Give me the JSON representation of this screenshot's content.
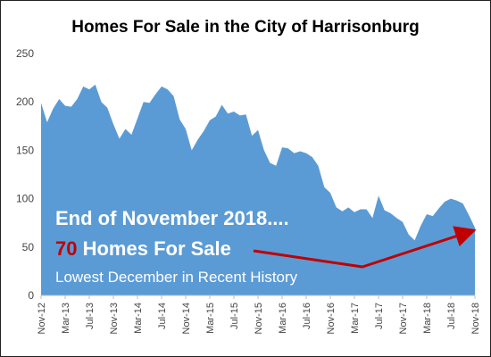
{
  "chart_data": {
    "type": "area",
    "title": "Homes For Sale in the City of Harrisonburg",
    "ylim": [
      0,
      250
    ],
    "yticks": [
      0,
      50,
      100,
      150,
      200,
      250
    ],
    "grid": false,
    "fill_color": "#5b9bd5",
    "x_tick_labels": [
      "Nov-12",
      "Mar-13",
      "Jul-13",
      "Nov-13",
      "Mar-14",
      "Jul-14",
      "Nov-14",
      "Mar-15",
      "Jul-15",
      "Nov-15",
      "Mar-16",
      "Jul-16",
      "Nov-16",
      "Mar-17",
      "Jul-17",
      "Nov-17",
      "Mar-18",
      "Jul-18",
      "Nov-18"
    ],
    "x_start": "Nov-12",
    "x_end": "Nov-18",
    "values": [
      199,
      179,
      193,
      203,
      196,
      195,
      203,
      216,
      213,
      218,
      200,
      194,
      177,
      162,
      172,
      166,
      183,
      200,
      199,
      208,
      216,
      213,
      206,
      182,
      172,
      150,
      161,
      170,
      181,
      185,
      197,
      188,
      190,
      186,
      187,
      165,
      171,
      150,
      137,
      134,
      153,
      152,
      147,
      149,
      147,
      143,
      134,
      112,
      106,
      91,
      87,
      91,
      86,
      89,
      89,
      80,
      103,
      88,
      85,
      80,
      76,
      63,
      57,
      72,
      84,
      82,
      90,
      97,
      100,
      98,
      95,
      83,
      70
    ],
    "annotations": {
      "line1": "End of November 2018....",
      "number": "70",
      "line2_rest": " Homes For Sale",
      "line3": "Lowest December in Recent History",
      "arrow_color": "#c00000"
    }
  }
}
